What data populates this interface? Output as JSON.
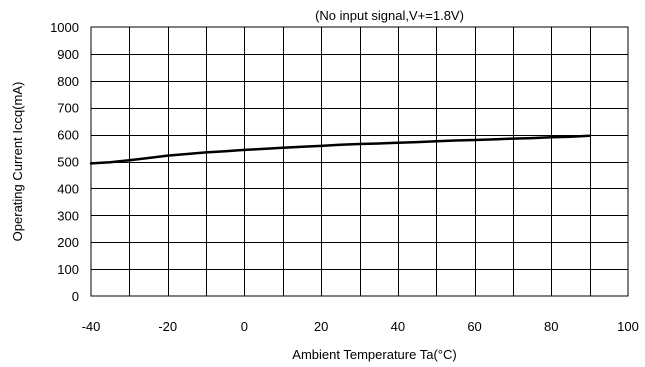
{
  "chart_data": {
    "type": "line",
    "title": "(No input signal,V+=1.8V)",
    "xlabel": "Ambient Temperature Ta(°C)",
    "ylabel": "Operating Current Iccq(mA)",
    "xlim": [
      -40,
      100
    ],
    "ylim": [
      0,
      1000
    ],
    "x_ticks": [
      -40,
      -20,
      0,
      20,
      40,
      60,
      80,
      100
    ],
    "y_ticks": [
      0,
      100,
      200,
      300,
      400,
      500,
      600,
      700,
      800,
      900,
      1000
    ],
    "x_grid_step": 10,
    "grid": true,
    "legend": "none",
    "series": [
      {
        "x": [
          -40,
          -35,
          -30,
          -25,
          -20,
          -15,
          -10,
          -5,
          0,
          5,
          10,
          15,
          20,
          25,
          30,
          35,
          40,
          45,
          50,
          55,
          60,
          65,
          70,
          75,
          80,
          85,
          90
        ],
        "y": [
          493,
          497,
          505,
          513,
          522,
          528,
          534,
          538,
          543,
          547,
          551,
          555,
          558,
          562,
          565,
          567,
          570,
          572,
          575,
          578,
          580,
          582,
          585,
          587,
          590,
          592,
          596
        ]
      }
    ]
  }
}
